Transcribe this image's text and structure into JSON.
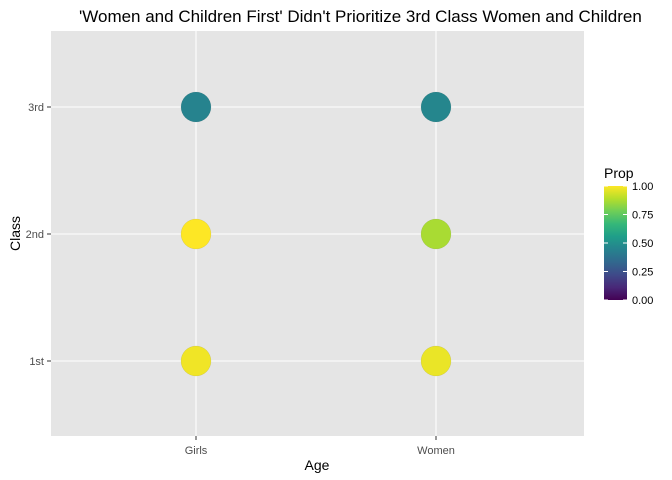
{
  "chart_data": {
    "type": "scatter",
    "title": "'Women and Children First' Didn't Prioritize 3rd Class Women and Children",
    "xlabel": "Age",
    "ylabel": "Class",
    "x_categories": [
      "Girls",
      "Women"
    ],
    "y_categories": [
      "1st",
      "2nd",
      "3rd"
    ],
    "points": [
      {
        "x": "Girls",
        "y": "1st",
        "prop": 0.98
      },
      {
        "x": "Girls",
        "y": "2nd",
        "prop": 1.0
      },
      {
        "x": "Girls",
        "y": "3rd",
        "prop": 0.45
      },
      {
        "x": "Women",
        "y": "1st",
        "prop": 0.97
      },
      {
        "x": "Women",
        "y": "2nd",
        "prop": 0.87
      },
      {
        "x": "Women",
        "y": "3rd",
        "prop": 0.46
      }
    ],
    "legend": {
      "title": "Prop",
      "ticks": [
        "0.00",
        "0.25",
        "0.50",
        "0.75",
        "1.00"
      ],
      "tick_values": [
        0,
        0.25,
        0.5,
        0.75,
        1.0
      ],
      "placement": "right",
      "colormap": "viridis"
    },
    "colors": {
      "panel_background": "#e5e5e5",
      "grid": "#ffffff",
      "viridis": [
        "#440154",
        "#482878",
        "#3e4a89",
        "#31688e",
        "#26828e",
        "#1f9e89",
        "#35b779",
        "#6ece58",
        "#b5de2b",
        "#fde725"
      ]
    },
    "grid": true
  }
}
